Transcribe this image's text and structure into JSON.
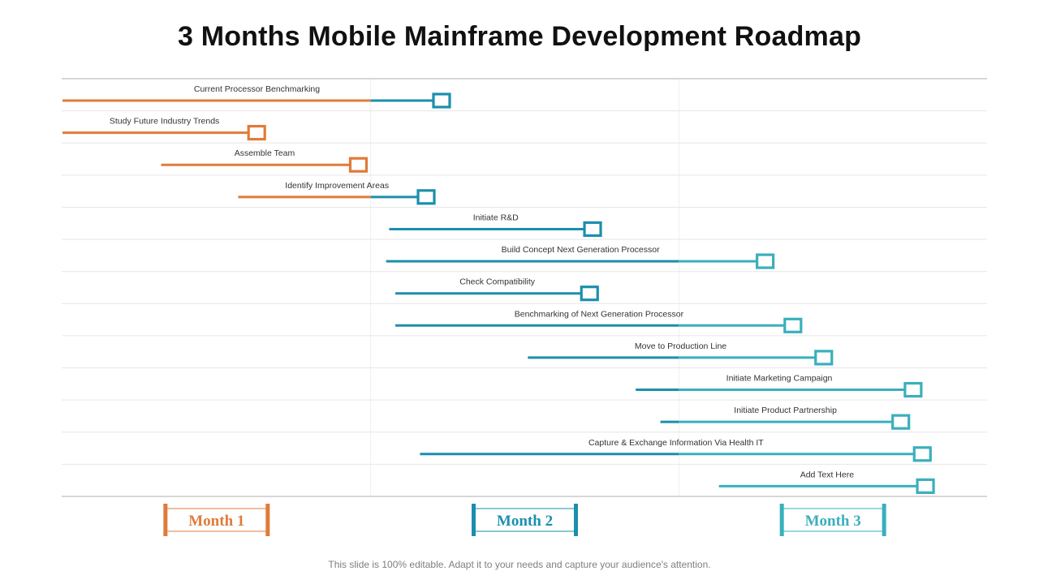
{
  "slide": {
    "title": "3 Months Mobile Mainframe Development Roadmap",
    "footer": "This slide is 100% editable. Adapt it to your needs and capture your audience's attention."
  },
  "colors": {
    "month1": "#E07B39",
    "month2": "#1B8FAD",
    "month3": "#3AAFBD",
    "grid": "#e6e6e6",
    "axis": "#bfbfbf"
  },
  "chart_data": {
    "type": "gantt",
    "title": "3 Months Mobile Mainframe Development Roadmap",
    "x_unit": "months",
    "xlim": [
      0,
      3
    ],
    "months": [
      "Month 1",
      "Month 2",
      "Month 3"
    ],
    "tasks": [
      {
        "name": "Current Processor Benchmarking",
        "start": 0.0,
        "end": 1.23
      },
      {
        "name": "Study Future Industry Trends",
        "start": 0.0,
        "end": 0.63
      },
      {
        "name": "Assemble Team",
        "start": 0.32,
        "end": 0.96
      },
      {
        "name": "Identify Improvement Areas",
        "start": 0.57,
        "end": 1.18
      },
      {
        "name": "Initiate  R&D",
        "start": 1.06,
        "end": 1.72
      },
      {
        "name": "Build Concept Next Generation Processor",
        "start": 1.05,
        "end": 2.28
      },
      {
        "name": "Check Compatibility",
        "start": 1.08,
        "end": 1.71
      },
      {
        "name": "Benchmarking of Next Generation Processor",
        "start": 1.08,
        "end": 2.37
      },
      {
        "name": "Move to Production Line",
        "start": 1.51,
        "end": 2.47
      },
      {
        "name": "Initiate  Marketing Campaign",
        "start": 1.86,
        "end": 2.76
      },
      {
        "name": "Initiate  Product Partnership",
        "start": 1.94,
        "end": 2.72
      },
      {
        "name": "Capture & Exchange Information Via Health  IT",
        "start": 1.16,
        "end": 2.79
      },
      {
        "name": "Add Text Here",
        "start": 2.13,
        "end": 2.8
      }
    ]
  }
}
